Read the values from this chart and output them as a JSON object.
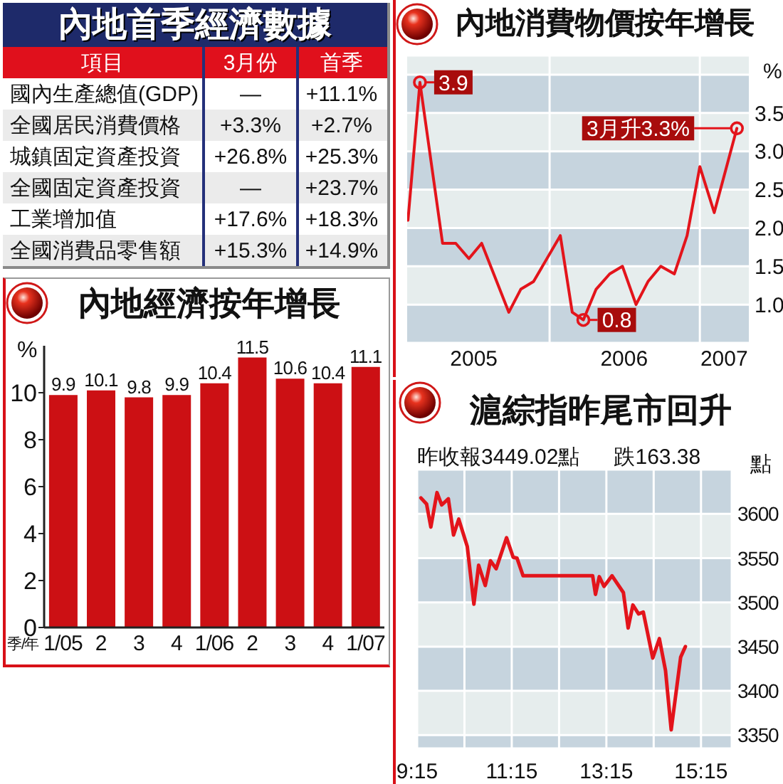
{
  "chart_data": [
    {
      "type": "other",
      "title": "內地首季經濟數據",
      "annotations": [
        "項目",
        "3月份",
        "首季",
        "國內生產總值(GDP)",
        "—",
        "+11.1%",
        "全國居民消費價格",
        "+3.3%",
        "+2.7%",
        "城鎮固定資產投資",
        "+26.8%",
        "+25.3%",
        "全國固定資產投資",
        "—",
        "+23.7%",
        "工業增加值",
        "+17.6%",
        "+18.3%",
        "全國消費品零售額",
        "+15.3%",
        "+14.9%"
      ]
    },
    {
      "type": "line",
      "title": "內地消費物價按年增長",
      "ylabel": "%",
      "x": [
        "2005-01-22",
        "2005-02-20",
        "2005-04-16",
        "2005-05-18",
        "2005-06-19",
        "2005-07-20",
        "2005-09-24",
        "2005-10-23",
        "2005-11-23",
        "2006-01-27",
        "2006-02-25",
        "2006-03-24",
        "2006-04-24",
        "2006-05-27",
        "2006-06-27",
        "2006-07-30",
        "2006-08-28",
        "2006-09-28",
        "2006-10-31",
        "2006-12-01",
        "2007-01-01",
        "2007-02-05",
        "2007-04-01"
      ],
      "series": [
        {
          "color": "#e3141b",
          "values": [
            2.1,
            3.9,
            1.8,
            1.8,
            1.6,
            1.8,
            0.9,
            1.2,
            1.3,
            1.9,
            0.9,
            0.8,
            1.2,
            1.4,
            1.5,
            1,
            1.3,
            1.5,
            1.4,
            1.9,
            2.8,
            2.2,
            3.3
          ]
        }
      ],
      "xlim": [
        "2005-01-20",
        "2007-04-30"
      ],
      "xticks": [
        {
          "value": "2005-07-01",
          "label": "2005"
        },
        {
          "value": "2006-07-01",
          "label": "2006"
        },
        {
          "value": "2007-03-01",
          "label": "2007"
        }
      ],
      "ylim": [
        0.5,
        4.25
      ],
      "yticks": [
        {
          "value": 1,
          "label": "1.0"
        },
        1.5,
        {
          "value": 2,
          "label": "2.0"
        },
        2.5,
        {
          "value": 3,
          "label": "3.0"
        },
        3.5,
        {
          "value": 4,
          "label": null
        }
      ],
      "grid": "y",
      "marker": "none",
      "ref_lines": [
        {
          "axis": "x",
          "value": "2006-01-01",
          "color": "#ffffff"
        },
        {
          "axis": "x",
          "value": "2007-01-01",
          "color": "#ffffff"
        }
      ],
      "annotations": [
        {
          "text": "3.9",
          "x": "2005-02-20",
          "y": 3.9
        },
        {
          "text": "0.8",
          "x": "2006-03-24",
          "y": 0.8
        },
        {
          "text": "3月升3.3%",
          "x": "2007-04-01",
          "y": 3.3
        }
      ]
    },
    {
      "type": "bar",
      "title": "內地經濟按年增長",
      "ylabel": "%",
      "xlabel": "季/年",
      "categories": [
        "1/05",
        "2",
        "3",
        "4",
        "1/06",
        "2",
        "3",
        "4",
        "1/07"
      ],
      "values": [
        9.9,
        10.1,
        9.8,
        9.9,
        10.4,
        11.5,
        10.6,
        10.4,
        11.1
      ],
      "color": "#cc1014",
      "ylim": [
        0,
        12
      ],
      "yticks": [
        0,
        2,
        4,
        6,
        8,
        10
      ],
      "data_labels": true
    },
    {
      "type": "line",
      "title": "滬綜指昨尾市回升",
      "subtitle": "昨收報3449.02點",
      "annotations": [
        "跌163.38"
      ],
      "ylabel": "點",
      "x": [
        9.33,
        9.45,
        9.54,
        9.67,
        9.77,
        9.91,
        10.02,
        10.13,
        10.31,
        10.45,
        10.55,
        10.69,
        10.8,
        10.92,
        11.14,
        11.28,
        11.36,
        11.49,
        12.96,
        13.02,
        13.1,
        13.2,
        13.37,
        13.61,
        13.71,
        13.81,
        13.93,
        14.03,
        14.23,
        14.37,
        14.5,
        14.62,
        14.82,
        14.92
      ],
      "series": [
        {
          "color": "#e3141b",
          "values": [
            3618,
            3611,
            3585,
            3624,
            3610,
            3617,
            3576,
            3594,
            3563,
            3498,
            3542,
            3519,
            3547,
            3538,
            3573,
            3551,
            3550,
            3530,
            3530,
            3509,
            3529,
            3518,
            3530,
            3511,
            3471,
            3497,
            3487,
            3489,
            3437,
            3459,
            3423,
            3356,
            3438,
            3450
          ]
        }
      ],
      "xlim": [
        9.25,
        15.9
      ],
      "xticks": [
        {
          "value": 9.25,
          "label": "9:15"
        },
        {
          "value": 10.25,
          "label": null
        },
        {
          "value": 11.25,
          "label": "11:15"
        },
        {
          "value": 12.25,
          "label": null
        },
        {
          "value": 13.25,
          "label": "13:15"
        },
        {
          "value": 14.25,
          "label": null
        },
        {
          "value": 15.25,
          "label": "15:15"
        }
      ],
      "ylim": [
        3335,
        3650
      ],
      "yticks": [
        3350,
        3400,
        3450,
        3500,
        3550,
        3600
      ],
      "grid": true,
      "marker": "none"
    }
  ]
}
